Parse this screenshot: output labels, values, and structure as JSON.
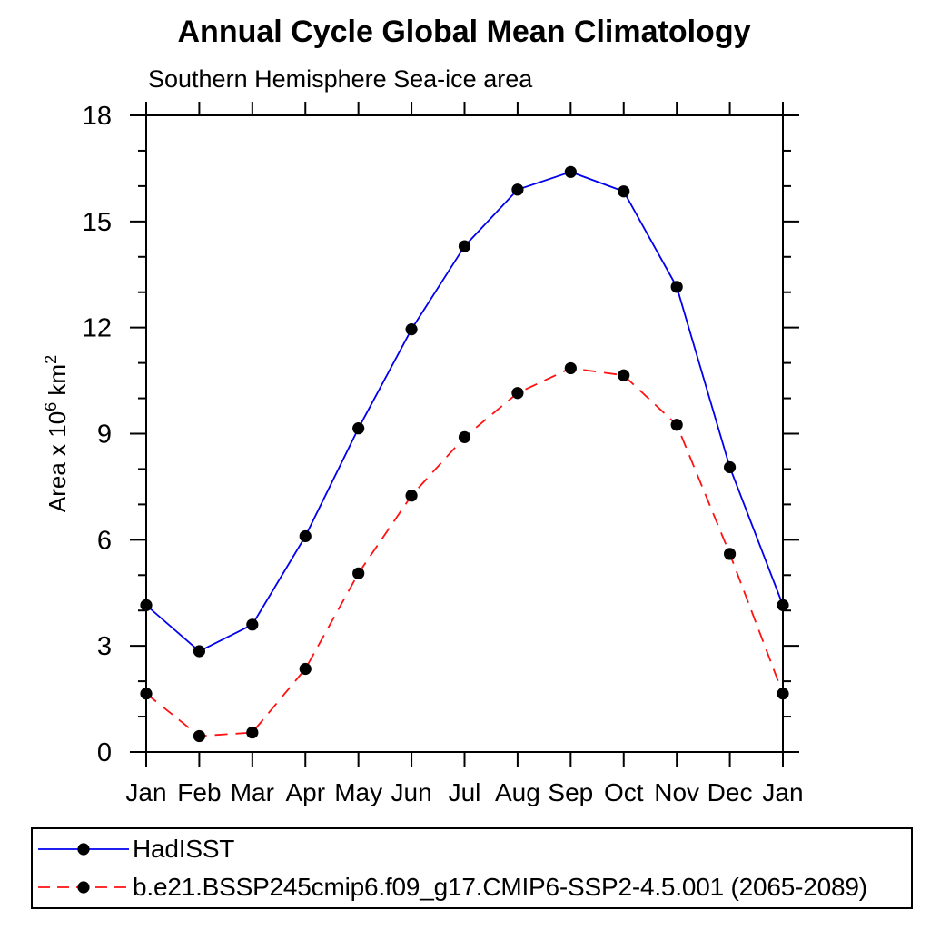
{
  "header": {
    "title": "Annual Cycle Global Mean Climatology",
    "subtitle": "Southern Hemisphere Sea-ice area"
  },
  "chart_data": {
    "type": "line",
    "title": "Annual Cycle Global Mean Climatology",
    "subtitle": "Southern Hemisphere Sea-ice area",
    "categories": [
      "Jan",
      "Feb",
      "Mar",
      "Apr",
      "May",
      "Jun",
      "Jul",
      "Aug",
      "Sep",
      "Oct",
      "Nov",
      "Dec",
      "Jan"
    ],
    "xlabel": "",
    "ylabel": "Area x 10⁶ km²",
    "ylabel_parts": [
      {
        "t": "Area x 10",
        "sup": false
      },
      {
        "t": "6",
        "sup": true
      },
      {
        "t": " km",
        "sup": false
      },
      {
        "t": "2",
        "sup": true
      }
    ],
    "ylim": [
      0,
      18
    ],
    "ytick_major": [
      0,
      3,
      6,
      9,
      12,
      15,
      18
    ],
    "ytick_minor_step": 1,
    "grid": false,
    "legend_position": "bottom",
    "series": [
      {
        "name": "HadISST",
        "color": "#0000ee",
        "line_style": "solid",
        "marker": "filled-circle",
        "marker_color": "#000000",
        "values": [
          4.15,
          2.85,
          3.6,
          6.1,
          9.15,
          11.95,
          14.3,
          15.9,
          16.4,
          15.85,
          13.15,
          8.05,
          4.15
        ]
      },
      {
        "name": "b.e21.BSSP245cmip6.f09_g17.CMIP6-SSP2-4.5.001 (2065-2089)",
        "color": "#ff1111",
        "line_style": "dashed",
        "marker": "filled-circle",
        "marker_color": "#000000",
        "values": [
          1.65,
          0.45,
          0.55,
          2.35,
          5.05,
          7.25,
          8.9,
          10.15,
          10.85,
          10.65,
          9.25,
          5.6,
          1.65
        ]
      }
    ]
  },
  "colors": {
    "axis": "#000000",
    "text": "#000000",
    "background": "#ffffff",
    "series_blue": "#0000ee",
    "series_red": "#ff1111"
  }
}
